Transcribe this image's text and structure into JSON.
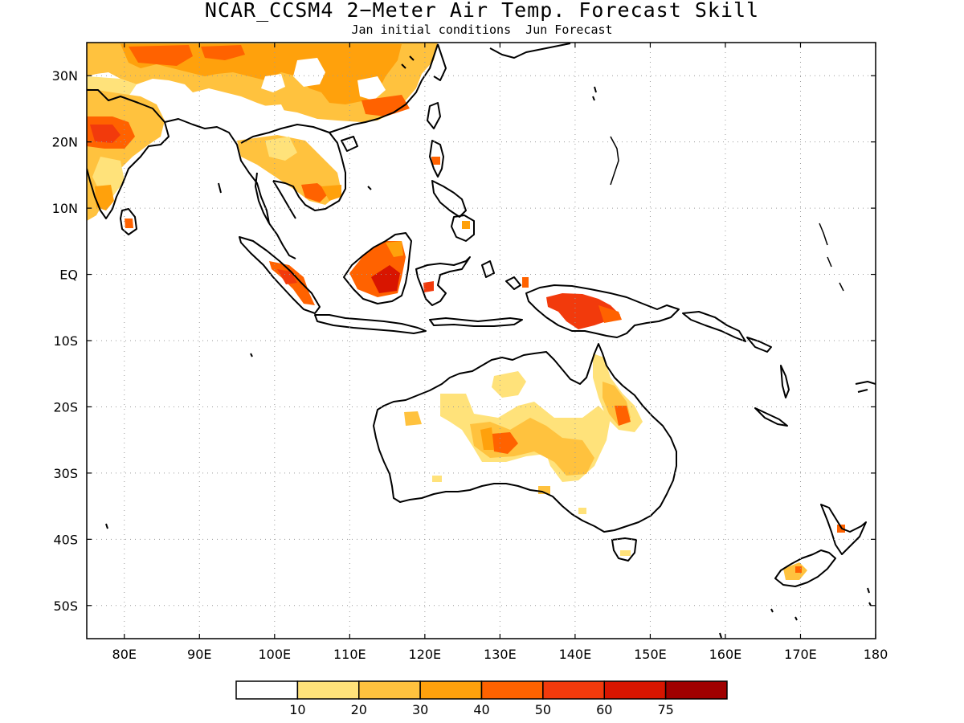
{
  "title": "NCAR_CCSM4 2−Meter Air Temp. Forecast Skill",
  "subtitle": "Jan initial conditions  Jun Forecast",
  "map": {
    "lon_range": [
      75,
      180
    ],
    "lat_range": [
      -55,
      35
    ],
    "lat_ticks": [
      {
        "value": 30,
        "label": "30N"
      },
      {
        "value": 20,
        "label": "20N"
      },
      {
        "value": 10,
        "label": "10N"
      },
      {
        "value": 0,
        "label": "EQ"
      },
      {
        "value": -10,
        "label": "10S"
      },
      {
        "value": -20,
        "label": "20S"
      },
      {
        "value": -30,
        "label": "30S"
      },
      {
        "value": -40,
        "label": "40S"
      },
      {
        "value": -50,
        "label": "50S"
      }
    ],
    "lon_ticks": [
      {
        "value": 80,
        "label": "80E"
      },
      {
        "value": 90,
        "label": "90E"
      },
      {
        "value": 100,
        "label": "100E"
      },
      {
        "value": 110,
        "label": "110E"
      },
      {
        "value": 120,
        "label": "120E"
      },
      {
        "value": 130,
        "label": "130E"
      },
      {
        "value": 140,
        "label": "140E"
      },
      {
        "value": 150,
        "label": "150E"
      },
      {
        "value": 160,
        "label": "160E"
      },
      {
        "value": 170,
        "label": "170E"
      },
      {
        "value": 180,
        "label": "180"
      }
    ],
    "grid": "dotted"
  },
  "colorbar": {
    "colors": [
      "#ffffff",
      "#ffe27a",
      "#ffc23e",
      "#ffa10c",
      "#ff6200",
      "#f23a0c",
      "#d81500",
      "#a00000"
    ],
    "labels": [
      "10",
      "20",
      "30",
      "40",
      "50",
      "60",
      "75"
    ]
  }
}
